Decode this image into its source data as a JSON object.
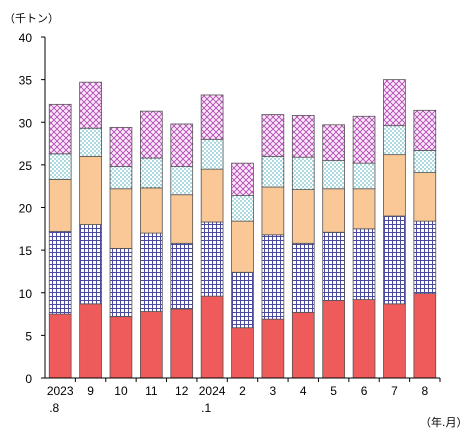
{
  "chart_data": {
    "type": "bar",
    "stacked": true,
    "y_unit_label": "（千トン）",
    "x_unit_label": "（年.月）",
    "ylim": [
      0,
      40
    ],
    "yticks": [
      0,
      5,
      10,
      15,
      20,
      25,
      30,
      35,
      40
    ],
    "grid": false,
    "legend": "none",
    "categories": [
      {
        "line1": "2023",
        "line2": ".8"
      },
      {
        "line1": "9",
        "line2": ""
      },
      {
        "line1": "10",
        "line2": ""
      },
      {
        "line1": "11",
        "line2": ""
      },
      {
        "line1": "12",
        "line2": ""
      },
      {
        "line1": "2024",
        "line2": ".1"
      },
      {
        "line1": "2",
        "line2": ""
      },
      {
        "line1": "3",
        "line2": ""
      },
      {
        "line1": "4",
        "line2": ""
      },
      {
        "line1": "5",
        "line2": ""
      },
      {
        "line1": "6",
        "line2": ""
      },
      {
        "line1": "7",
        "line2": ""
      },
      {
        "line1": "8",
        "line2": ""
      }
    ],
    "series": [
      {
        "color": "#ef5a5a",
        "pattern": "solid",
        "values": [
          7.5,
          8.7,
          7.2,
          7.8,
          8.1,
          9.6,
          5.9,
          6.9,
          7.7,
          9.1,
          9.2,
          8.7,
          9.9
        ]
      },
      {
        "color": "#4a4aa0",
        "pattern": "grid",
        "values": [
          9.7,
          9.3,
          8.0,
          9.2,
          7.7,
          8.7,
          6.5,
          9.9,
          8.1,
          8.0,
          8.3,
          10.3,
          8.5
        ]
      },
      {
        "color": "#f9c896",
        "pattern": "solid-light",
        "values": [
          6.1,
          8.0,
          7.0,
          5.3,
          5.7,
          6.2,
          6.0,
          5.6,
          6.3,
          5.1,
          4.7,
          7.2,
          5.7
        ]
      },
      {
        "color": "#2f9fb0",
        "pattern": "dots",
        "values": [
          3.0,
          3.3,
          2.6,
          3.5,
          3.3,
          3.5,
          3.0,
          3.6,
          3.8,
          3.3,
          3.0,
          3.4,
          2.6
        ]
      },
      {
        "color": "#b04ab0",
        "pattern": "crosshatch",
        "values": [
          5.8,
          5.4,
          4.6,
          5.5,
          5.0,
          5.2,
          3.8,
          4.9,
          4.9,
          4.2,
          5.5,
          5.4,
          4.7
        ]
      }
    ]
  }
}
